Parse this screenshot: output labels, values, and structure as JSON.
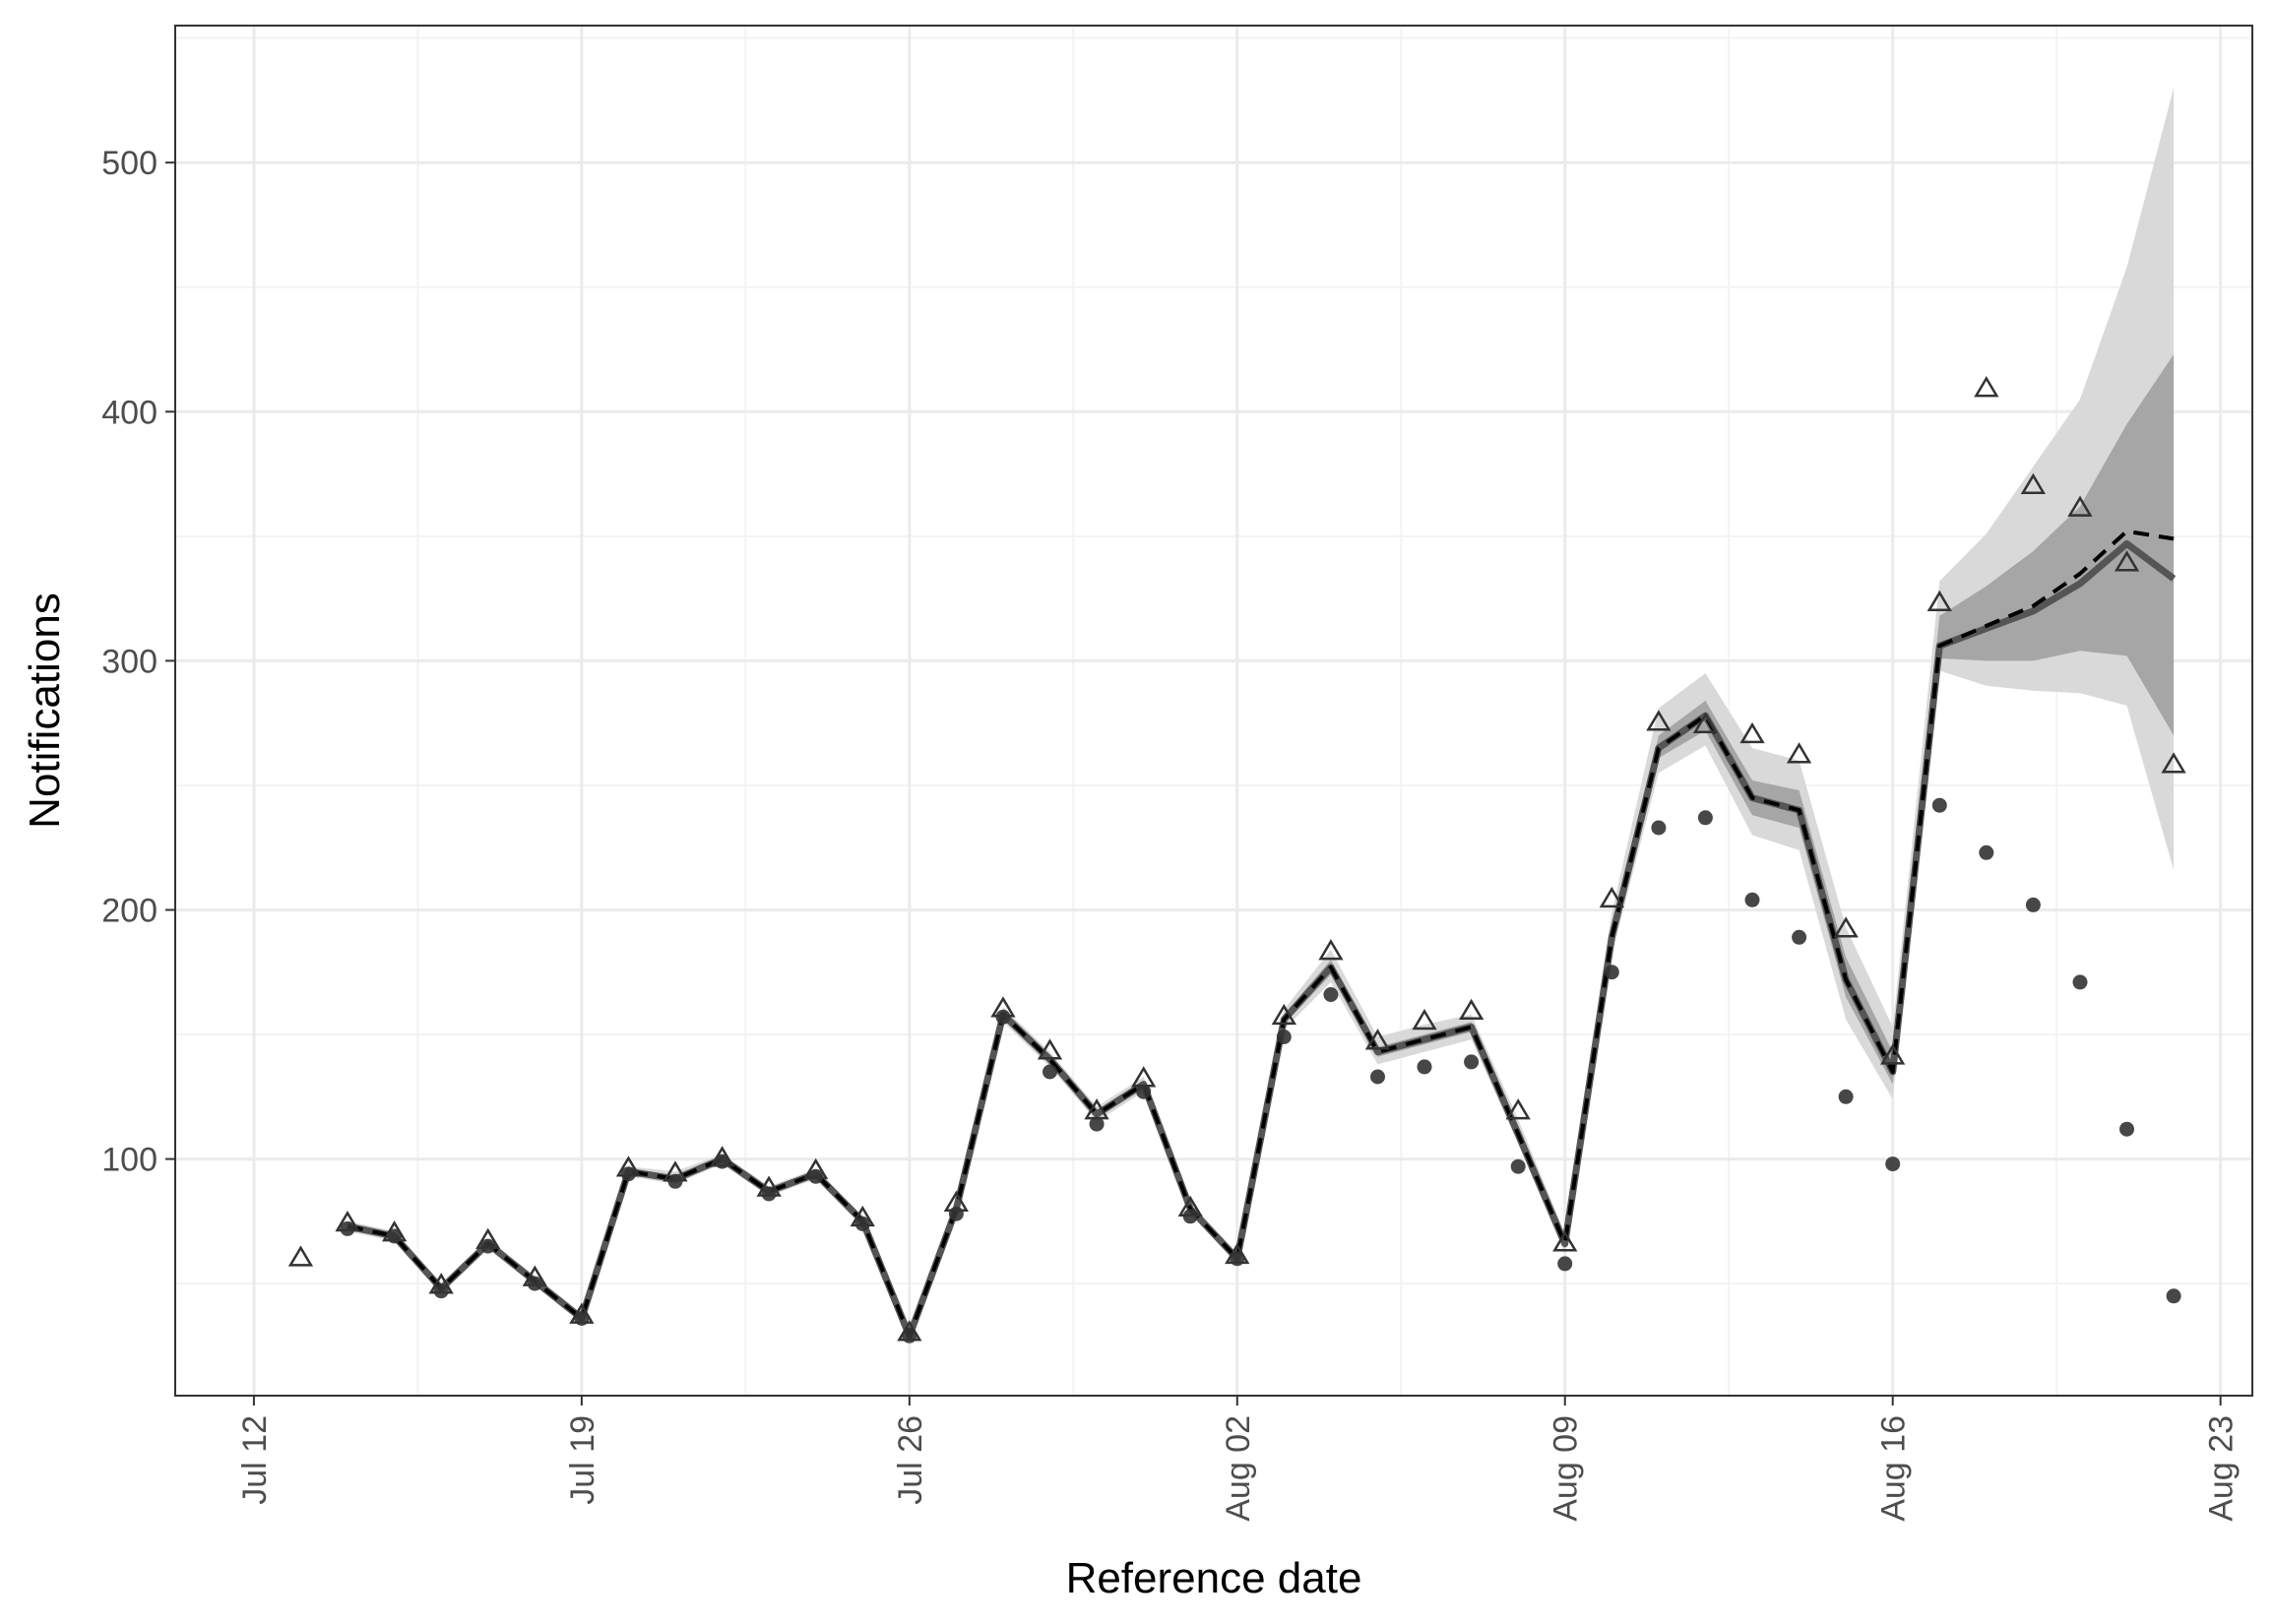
{
  "chart_data": {
    "type": "line",
    "title": "",
    "xlabel": "Reference date",
    "ylabel": "Notifications",
    "x_ticks": [
      "Jul 12",
      "Jul 19",
      "Jul 26",
      "Aug 02",
      "Aug 09",
      "Aug 16",
      "Aug 23"
    ],
    "y_ticks": [
      100,
      200,
      300,
      400,
      500
    ],
    "xlim": [
      "Jul 11",
      "Aug 23"
    ],
    "ylim": [
      5,
      555
    ],
    "grid": true,
    "legend": "none",
    "dates": [
      "Jul 13",
      "Jul 14",
      "Jul 15",
      "Jul 16",
      "Jul 17",
      "Jul 18",
      "Jul 19",
      "Jul 20",
      "Jul 21",
      "Jul 22",
      "Jul 23",
      "Jul 24",
      "Jul 25",
      "Jul 26",
      "Jul 27",
      "Jul 28",
      "Jul 29",
      "Jul 30",
      "Jul 31",
      "Aug 01",
      "Aug 02",
      "Aug 03",
      "Aug 04",
      "Aug 05",
      "Aug 06",
      "Aug 07",
      "Aug 08",
      "Aug 09",
      "Aug 10",
      "Aug 11",
      "Aug 12",
      "Aug 13",
      "Aug 14",
      "Aug 15",
      "Aug 16",
      "Aug 17",
      "Aug 18",
      "Aug 19",
      "Aug 20",
      "Aug 21",
      "Aug 22"
    ],
    "series": [
      {
        "role": "observed_final",
        "marker": "open-triangle",
        "values": [
          60,
          74,
          70,
          49,
          67,
          52,
          37,
          96,
          94,
          100,
          88,
          95,
          76,
          30,
          82,
          160,
          143,
          119,
          132,
          80,
          61,
          157,
          183,
          147,
          155,
          159,
          119,
          66,
          204,
          275,
          274,
          270,
          262,
          192,
          141,
          323,
          409,
          370,
          361,
          339,
          258
        ]
      },
      {
        "role": "observed_at_estimation",
        "marker": "filled-circle",
        "values": [
          null,
          72,
          69,
          47,
          65,
          50,
          36,
          94,
          91,
          99,
          86,
          93,
          74,
          29,
          78,
          157,
          135,
          114,
          127,
          77,
          60,
          149,
          166,
          133,
          137,
          139,
          97,
          58,
          175,
          233,
          237,
          204,
          189,
          125,
          98,
          242,
          223,
          202,
          171,
          112,
          45
        ]
      },
      {
        "role": "median_estimate",
        "line": "solid",
        "values": [
          null,
          73,
          69,
          48,
          66,
          51,
          36,
          95,
          92,
          100,
          87,
          94,
          75,
          29,
          80,
          158,
          140,
          118,
          130,
          80,
          60,
          156,
          177,
          143,
          148,
          153,
          110,
          66,
          189,
          265,
          278,
          245,
          240,
          172,
          135,
          306,
          313,
          320,
          331,
          347,
          333
        ]
      },
      {
        "role": "mean_estimate",
        "line": "dashed",
        "values": [
          null,
          73,
          69,
          48,
          66,
          51,
          36,
          95,
          92,
          100,
          87,
          94,
          75,
          29,
          80,
          158,
          140,
          118,
          130,
          80,
          60,
          156,
          177,
          143,
          148,
          153,
          110,
          66,
          189,
          265,
          278,
          245,
          240,
          172,
          135,
          306,
          314,
          322,
          335,
          352,
          349
        ]
      }
    ],
    "bands": [
      {
        "role": "outer_interval",
        "lower": [
          null,
          71,
          67,
          46,
          64,
          49,
          35,
          93,
          90,
          98,
          85,
          92,
          73,
          28,
          78,
          155,
          137,
          115,
          127,
          78,
          58,
          152,
          171,
          138,
          143,
          148,
          106,
          62,
          182,
          255,
          266,
          230,
          224,
          156,
          124,
          296,
          290,
          288,
          287,
          282,
          216
        ],
        "upper": [
          null,
          75,
          71,
          50,
          68,
          53,
          38,
          97,
          95,
          102,
          89,
          96,
          77,
          31,
          82,
          161,
          143,
          121,
          133,
          82,
          62,
          160,
          184,
          149,
          154,
          158,
          116,
          70,
          199,
          281,
          295,
          265,
          260,
          193,
          153,
          332,
          351,
          378,
          405,
          458,
          530
        ]
      },
      {
        "role": "inner_interval",
        "lower": [
          null,
          72,
          68,
          47,
          65,
          50,
          36,
          94,
          91,
          99,
          86,
          93,
          74,
          29,
          79,
          157,
          139,
          117,
          129,
          79,
          59,
          154,
          174,
          141,
          146,
          151,
          109,
          64,
          185,
          261,
          272,
          238,
          233,
          165,
          130,
          301,
          300,
          300,
          304,
          302,
          270
        ],
        "upper": [
          null,
          74,
          70,
          49,
          67,
          52,
          37,
          96,
          93,
          101,
          88,
          95,
          76,
          30,
          81,
          159,
          141,
          119,
          131,
          81,
          61,
          158,
          180,
          145,
          150,
          155,
          113,
          68,
          193,
          270,
          284,
          252,
          248,
          181,
          143,
          318,
          330,
          344,
          362,
          395,
          423
        ]
      }
    ],
    "colors": {
      "outer_band": "#d9d9d9",
      "inner_band": "#a6a6a6",
      "median_line": "#555555",
      "mean_line": "#000000",
      "points": "#333333",
      "grid_major": "#ebebeb",
      "grid_minor": "#f3f3f3",
      "panel_border": "#333333"
    }
  }
}
